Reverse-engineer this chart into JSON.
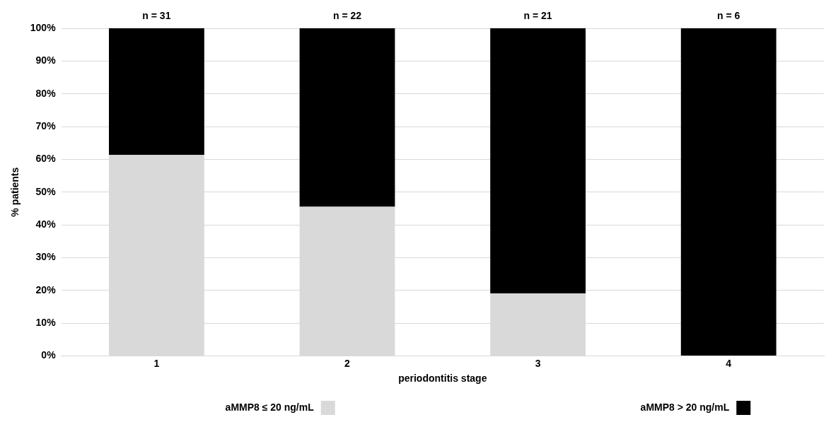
{
  "chart_data": {
    "type": "bar",
    "stacked": true,
    "categories": [
      "1",
      "2",
      "3",
      "4"
    ],
    "series": [
      {
        "name": "aMMP8 ≤ 20 ng/mL",
        "color": "#d9d9d9",
        "values": [
          61.3,
          45.5,
          19,
          0
        ]
      },
      {
        "name": "aMMP8 > 20 ng/mL",
        "color": "#000000",
        "values": [
          38.7,
          54.5,
          81,
          100
        ]
      }
    ],
    "xlabel": "periodontitis stage",
    "ylabel": "% patients",
    "ylim": [
      0,
      100
    ],
    "yticks": [
      {
        "value": 0,
        "label": "0%"
      },
      {
        "value": 10,
        "label": "10%"
      },
      {
        "value": 20,
        "label": "20%"
      },
      {
        "value": 30,
        "label": "30%"
      },
      {
        "value": 40,
        "label": "40%"
      },
      {
        "value": 50,
        "label": "50%"
      },
      {
        "value": 60,
        "label": "60%"
      },
      {
        "value": 70,
        "label": "70%"
      },
      {
        "value": 80,
        "label": "80%"
      },
      {
        "value": 90,
        "label": "90%"
      },
      {
        "value": 100,
        "label": "100%"
      }
    ],
    "grid": "y",
    "legend": "bottom",
    "annotations": [
      "n = 31",
      "n = 22",
      "n = 21",
      "n = 6"
    ]
  }
}
